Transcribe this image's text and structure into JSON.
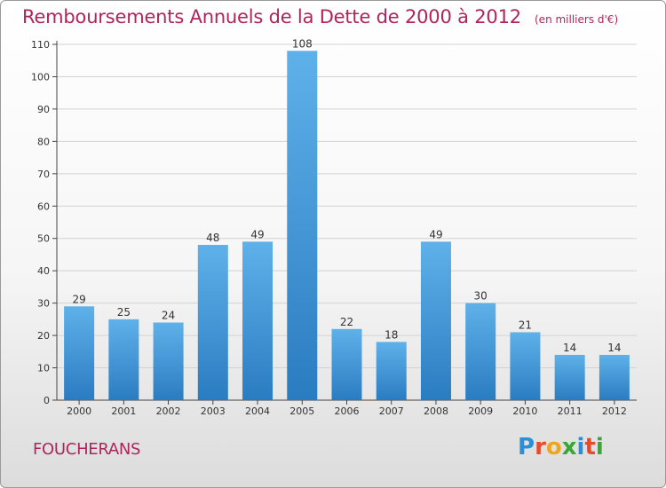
{
  "title": "Remboursements Annuels de la Dette de 2000 à 2012",
  "unit_note": "(en milliers d'€)",
  "commune": "FOUCHERANS",
  "logo": {
    "text": "Proxiti",
    "letters": [
      {
        "ch": "P",
        "color": "#2a8fd4"
      },
      {
        "ch": "r",
        "color": "#e84b2a"
      },
      {
        "ch": "o",
        "color": "#f0a51c"
      },
      {
        "ch": "x",
        "color": "#3aa637"
      },
      {
        "ch": "i",
        "color": "#2a8fd4"
      },
      {
        "ch": "t",
        "color": "#e84b2a"
      },
      {
        "ch": "i",
        "color": "#3aa637"
      }
    ]
  },
  "colors": {
    "accent": "#b0245c",
    "bar_light": "#5aace6",
    "bar_dark": "#2c7fc4",
    "grid": "#d0d0d0"
  },
  "chart_data": {
    "type": "bar",
    "title": "Remboursements Annuels de la Dette de 2000 à 2012",
    "xlabel": "",
    "ylabel": "",
    "categories": [
      "2000",
      "2001",
      "2002",
      "2003",
      "2004",
      "2005",
      "2006",
      "2007",
      "2008",
      "2009",
      "2010",
      "2011",
      "2012"
    ],
    "values": [
      29,
      25,
      24,
      48,
      49,
      108,
      22,
      18,
      49,
      30,
      21,
      14,
      14
    ],
    "ylim": [
      0,
      110
    ],
    "yticks": [
      0,
      10,
      20,
      30,
      40,
      50,
      60,
      70,
      80,
      90,
      100,
      110
    ],
    "grid": true
  }
}
